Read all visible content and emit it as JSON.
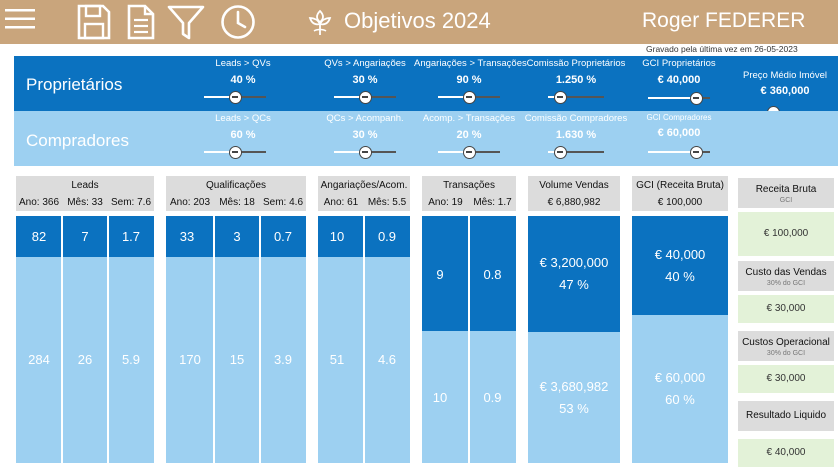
{
  "app": {
    "title": "Objetivos 2024",
    "user": "Roger FEDERER",
    "saved_text": "Gravado pela última vez em 26-05-2023"
  },
  "toolbar": {
    "icons": [
      "menu-icon",
      "save-icon",
      "document-icon",
      "filter-icon",
      "clock-icon",
      "leaf-logo-icon"
    ]
  },
  "proprietarios": {
    "label": "Proprietários",
    "controls": [
      {
        "label": "Leads > QVs",
        "value": "40 %"
      },
      {
        "label": "QVs > Angariações",
        "value": "30 %"
      },
      {
        "label": "Angariações > Transações",
        "value": "90 %"
      },
      {
        "label": "Comissão Proprietários",
        "value": "1.250 %"
      },
      {
        "label": "GCI Proprietários",
        "value": "€ 40,000"
      },
      {
        "label": "Preço Médio Imóvel",
        "value": "€ 360,000"
      }
    ]
  },
  "compradores": {
    "label": "Compradores",
    "controls": [
      {
        "label": "Leads > QCs",
        "value": "60 %"
      },
      {
        "label": "QCs > Acompanh.",
        "value": "30 %"
      },
      {
        "label": "Acomp. > Transações",
        "value": "20 %"
      },
      {
        "label": "Comissão Compradores",
        "value": "1.630 %"
      },
      {
        "label": "GCI Compradores",
        "value": "€ 60,000"
      }
    ]
  },
  "groups": {
    "leads": {
      "title": "Leads",
      "subs": [
        "Ano: 366",
        "Mês: 33",
        "Sem: 7.6"
      ],
      "top": [
        "82",
        "7",
        "1.7"
      ],
      "bottom": [
        "284",
        "26",
        "5.9"
      ]
    },
    "qualificacoes": {
      "title": "Qualificações",
      "subs": [
        "Ano: 203",
        "Mês: 18",
        "Sem: 4.6"
      ],
      "top": [
        "33",
        "3",
        "0.7"
      ],
      "bottom": [
        "170",
        "15",
        "3.9"
      ]
    },
    "angariacoes": {
      "title": "Angariações/Acom.",
      "subs": [
        "Ano: 61",
        "Mês: 5.5"
      ],
      "top": [
        "10",
        "0.9"
      ],
      "bottom": [
        "51",
        "4.6"
      ]
    },
    "transacoes": {
      "title": "Transações",
      "subs": [
        "Ano: 19",
        "Mês: 1.7"
      ],
      "top": [
        "9",
        "0.8"
      ],
      "bottom": [
        "10",
        "0.9"
      ]
    },
    "volume": {
      "title": "Volume Vendas",
      "sub": "€ 6,880,982",
      "top_value": "€ 3,200,000",
      "top_pct": "47 %",
      "bottom_value": "€ 3,680,982",
      "bottom_pct": "53 %"
    },
    "gci": {
      "title": "GCI (Receita Bruta)",
      "sub": "€ 100,000",
      "top_value": "€ 40,000",
      "top_pct": "40 %",
      "bottom_value": "€ 60,000",
      "bottom_pct": "60 %"
    }
  },
  "right_panel": [
    {
      "label": "Receita Bruta",
      "sub": "GCI",
      "value": "€ 100,000"
    },
    {
      "label": "Custo das Vendas",
      "sub": "30% do GCI",
      "value": "€ 30,000"
    },
    {
      "label": "Custos Operacional",
      "sub": "30% do GCI",
      "value": "€ 30,000"
    },
    {
      "label": "Resultado Liquido",
      "sub": "",
      "value": "€ 40,000"
    }
  ],
  "sliders": {
    "leads_qvs": 0.5,
    "qvs_angariacoes": 0.5,
    "angariacoes_transacoes": 0.5,
    "comissao_proprietarios": 0.15,
    "gci_proprietarios": 0.85,
    "preco_medio": 0.25,
    "leads_qcs": 0.5,
    "qcs_acompanh": 0.5,
    "acomp_transacoes": 0.5,
    "comissao_compradores": 0.15,
    "gci_compradores": 0.85
  },
  "volume_split": {
    "top_pct": 47,
    "bottom_pct": 53
  },
  "gci_split": {
    "top_pct": 40,
    "bottom_pct": 60
  },
  "colors": {
    "topbar": "#c9a57c",
    "owners_blue": "#0b72c0",
    "buyers_blue": "#9dd0f1",
    "header_gray": "#dcdcdc",
    "result_green": "#e3f2d8"
  }
}
